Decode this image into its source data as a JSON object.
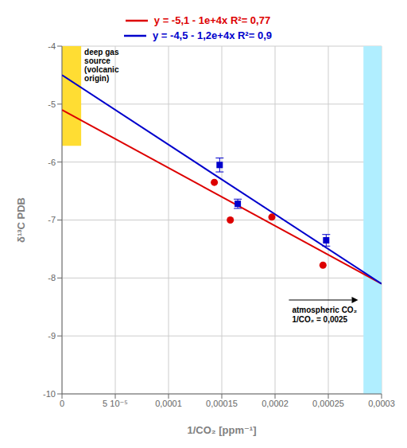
{
  "chart_data": {
    "type": "scatter",
    "xlabel": "1/CO₂ [ppm⁻¹]",
    "ylabel": "δ¹³C PDB",
    "xlim": [
      0,
      0.0003
    ],
    "ylim": [
      -10,
      -4
    ],
    "xticks": [
      0,
      {
        "value": 5e-05,
        "label": "5 10⁻⁵"
      },
      {
        "value": 0.0001,
        "label": "0,0001"
      },
      {
        "value": 0.00015,
        "label": "0,00015"
      },
      {
        "value": 0.0002,
        "label": "0,0002"
      },
      {
        "value": 0.00025,
        "label": "0,00025"
      },
      {
        "value": 0.0003,
        "label": "0,0003"
      }
    ],
    "yticks": [
      -4,
      -5,
      -6,
      -7,
      -8,
      -9,
      -10
    ],
    "grid": true,
    "legend": "top",
    "series": [
      {
        "name": "y = -5,1 - 1e+4x   R²= 0,77",
        "type": "line",
        "color": "#dd0000",
        "x": [
          0,
          0.0003
        ],
        "values": [
          -5.1,
          -8.1
        ]
      },
      {
        "name": "y = -4,5 - 1,2e+4x   R²= 0,9",
        "type": "line",
        "color": "#0000cc",
        "x": [
          0,
          0.0003
        ],
        "values": [
          -4.5,
          -8.1
        ]
      },
      {
        "type": "scatter",
        "marker": "circle",
        "color": "#dd0000",
        "x": [
          0.000143,
          0.000158,
          0.000197,
          0.000245
        ],
        "values": [
          -6.35,
          -7.0,
          -6.95,
          -7.78
        ]
      },
      {
        "type": "scatter",
        "marker": "square",
        "color": "#0000cc",
        "x": [
          0.000148,
          0.000165,
          0.000248
        ],
        "values": [
          -6.05,
          -6.72,
          -7.35
        ],
        "error": [
          0.12,
          0.08,
          0.1
        ]
      }
    ],
    "regions": [
      {
        "x": [
          0,
          1.8e-05
        ],
        "y": [
          -5.72,
          -4.0
        ],
        "color": "#ffdd33",
        "label": "deep gas\nsource\n(volcanic\norigin)"
      },
      {
        "x": [
          0.000283,
          0.000313
        ],
        "y": [
          -10.0,
          -3.5
        ],
        "color": "#b0eeff"
      }
    ],
    "annotations": [
      {
        "text": "atmospheric CO₂\n1/CO₂ = 0,0025",
        "x": 0.000213,
        "x_end": 0.000278,
        "y": -8.38
      }
    ]
  }
}
